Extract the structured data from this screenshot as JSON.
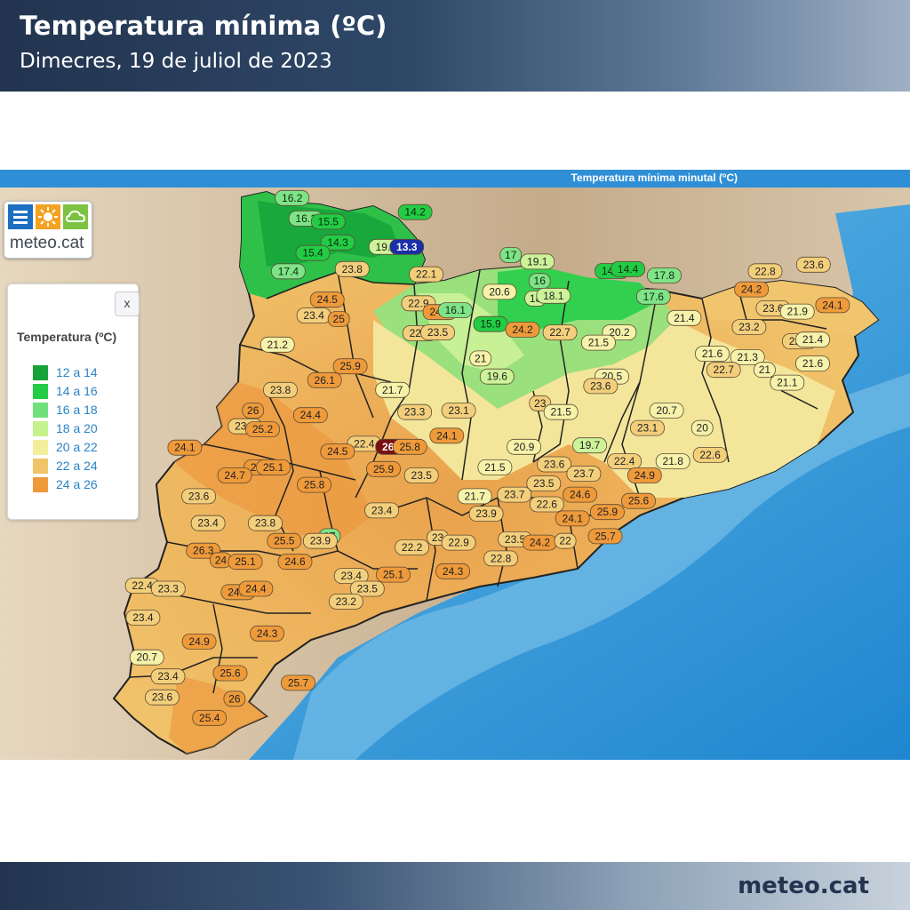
{
  "header": {
    "title": "Temperatura mínima (ºC)",
    "subtitle": "Dimecres, 19 de juliol de 2023"
  },
  "map": {
    "bar_title": "Temperatura mínima minutal (ºC)",
    "logo_text": "meteo.cat",
    "logo_icons": [
      "menu-icon",
      "sun-icon",
      "cloud-icon"
    ],
    "colors": {
      "sea": "#3a9ad6",
      "land_gray": "#c9b79e",
      "bar": "#2f8fd6"
    }
  },
  "legend": {
    "close_label": "x",
    "title": "Temperatura (ºC)",
    "items": [
      {
        "label": "12 a 14",
        "color": "#17a33a"
      },
      {
        "label": "14 a 16",
        "color": "#22cc44"
      },
      {
        "label": "16 a 18",
        "color": "#6fe07a"
      },
      {
        "label": "18 a 20",
        "color": "#c6f28e"
      },
      {
        "label": "20 a 22",
        "color": "#f2ee9c"
      },
      {
        "label": "22 a 24",
        "color": "#f0c468"
      },
      {
        "label": "24 a 26",
        "color": "#ef9a3a"
      }
    ]
  },
  "stations": [
    {
      "t": "16.2",
      "lon": 0.713,
      "lat": 42.859
    },
    {
      "t": "16.1",
      "lon": 0.77,
      "lat": 42.785
    },
    {
      "t": "15.5",
      "lon": 0.863,
      "lat": 42.774
    },
    {
      "t": "14.2",
      "lon": 1.225,
      "lat": 42.808
    },
    {
      "t": "14.3",
      "lon": 0.903,
      "lat": 42.699
    },
    {
      "t": "19.4",
      "lon": 1.103,
      "lat": 42.683
    },
    {
      "t": "13.3",
      "lon": 1.19,
      "lat": 42.683
    },
    {
      "t": "15.4",
      "lon": 0.799,
      "lat": 42.661
    },
    {
      "t": "17.4",
      "lon": 0.697,
      "lat": 42.595
    },
    {
      "t": "23.8",
      "lon": 0.963,
      "lat": 42.603
    },
    {
      "t": "22.1",
      "lon": 1.271,
      "lat": 42.584
    },
    {
      "t": "17",
      "lon": 1.623,
      "lat": 42.654
    },
    {
      "t": "19.1",
      "lon": 1.734,
      "lat": 42.63
    },
    {
      "t": "14.6",
      "lon": 2.044,
      "lat": 42.596
    },
    {
      "t": "14.4",
      "lon": 2.111,
      "lat": 42.603
    },
    {
      "t": "17.8",
      "lon": 2.262,
      "lat": 42.58
    },
    {
      "t": "16",
      "lon": 1.743,
      "lat": 42.56
    },
    {
      "t": "20.6",
      "lon": 1.576,
      "lat": 42.521
    },
    {
      "t": "18",
      "lon": 1.726,
      "lat": 42.497
    },
    {
      "t": "18.1",
      "lon": 1.801,
      "lat": 42.507
    },
    {
      "t": "17.6",
      "lon": 2.217,
      "lat": 42.504
    },
    {
      "t": "22.9",
      "lon": 1.239,
      "lat": 42.48
    },
    {
      "t": "24.9",
      "lon": 1.328,
      "lat": 42.448
    },
    {
      "t": "16.1",
      "lon": 1.392,
      "lat": 42.455
    },
    {
      "t": "24.5",
      "lon": 0.859,
      "lat": 42.493
    },
    {
      "t": "23.4",
      "lon": 0.803,
      "lat": 42.436
    },
    {
      "t": "25",
      "lon": 0.907,
      "lat": 42.423
    },
    {
      "t": "15.9",
      "lon": 1.539,
      "lat": 42.405
    },
    {
      "t": "24.2",
      "lon": 1.672,
      "lat": 42.385
    },
    {
      "t": "22.7",
      "lon": 1.244,
      "lat": 42.372
    },
    {
      "t": "23.5",
      "lon": 1.319,
      "lat": 42.375
    },
    {
      "t": "22.7",
      "lon": 1.828,
      "lat": 42.375
    },
    {
      "t": "20.2",
      "lon": 2.075,
      "lat": 42.375
    },
    {
      "t": "21.5",
      "lon": 1.988,
      "lat": 42.338
    },
    {
      "t": "21.4",
      "lon": 2.345,
      "lat": 42.427
    },
    {
      "t": "21.2",
      "lon": 0.652,
      "lat": 42.331
    },
    {
      "t": "21",
      "lon": 1.497,
      "lat": 42.281
    },
    {
      "t": "19.6",
      "lon": 1.566,
      "lat": 42.216
    },
    {
      "t": "20.5",
      "lon": 2.044,
      "lat": 42.216
    },
    {
      "t": "23.6",
      "lon": 1.997,
      "lat": 42.182
    },
    {
      "t": "25.9",
      "lon": 0.955,
      "lat": 42.253
    },
    {
      "t": "26.1",
      "lon": 0.848,
      "lat": 42.203
    },
    {
      "t": "23.8",
      "lon": 0.664,
      "lat": 42.168
    },
    {
      "t": "21.7",
      "lon": 1.131,
      "lat": 42.168
    },
    {
      "t": "23",
      "lon": 1.745,
      "lat": 42.12
    },
    {
      "t": "21.5",
      "lon": 1.832,
      "lat": 42.088
    },
    {
      "t": "20.7",
      "lon": 2.272,
      "lat": 42.094
    },
    {
      "t": "24.4",
      "lon": 0.789,
      "lat": 42.077
    },
    {
      "t": "23.3",
      "lon": 1.223,
      "lat": 42.088
    },
    {
      "t": "23.1",
      "lon": 1.406,
      "lat": 42.094
    },
    {
      "t": "26",
      "lon": 0.55,
      "lat": 42.094
    },
    {
      "t": "23.9",
      "lon": 0.517,
      "lat": 42.037
    },
    {
      "t": "25.2",
      "lon": 0.59,
      "lat": 42.026
    },
    {
      "t": "23.1",
      "lon": 2.192,
      "lat": 42.031
    },
    {
      "t": "20",
      "lon": 2.42,
      "lat": 42.031
    },
    {
      "t": "24.1",
      "lon": 1.357,
      "lat": 42.003
    },
    {
      "t": "22.4",
      "lon": 1.013,
      "lat": 41.974
    },
    {
      "t": "26.4",
      "lon": 1.131,
      "lat": 41.963
    },
    {
      "t": "25.8",
      "lon": 1.203,
      "lat": 41.963
    },
    {
      "t": "20.9",
      "lon": 1.678,
      "lat": 41.963
    },
    {
      "t": "19.7",
      "lon": 1.952,
      "lat": 41.968
    },
    {
      "t": "24.1",
      "lon": 0.266,
      "lat": 41.96
    },
    {
      "t": "24.5",
      "lon": 0.902,
      "lat": 41.946
    },
    {
      "t": "21.8",
      "lon": 2.298,
      "lat": 41.911
    },
    {
      "t": "22.6",
      "lon": 2.453,
      "lat": 41.934
    },
    {
      "t": "24.9",
      "lon": 0.583,
      "lat": 41.889
    },
    {
      "t": "25.1",
      "lon": 0.635,
      "lat": 41.889
    },
    {
      "t": "25.9",
      "lon": 1.093,
      "lat": 41.883
    },
    {
      "t": "21.5",
      "lon": 1.557,
      "lat": 41.889
    },
    {
      "t": "23.6",
      "lon": 1.804,
      "lat": 41.9
    },
    {
      "t": "22.4",
      "lon": 2.096,
      "lat": 41.911
    },
    {
      "t": "24.7",
      "lon": 0.474,
      "lat": 41.86
    },
    {
      "t": "23.5",
      "lon": 1.251,
      "lat": 41.86
    },
    {
      "t": "23.7",
      "lon": 1.927,
      "lat": 41.866
    },
    {
      "t": "24.9",
      "lon": 2.18,
      "lat": 41.86
    },
    {
      "t": "25.8",
      "lon": 0.805,
      "lat": 41.826
    },
    {
      "t": "23.5",
      "lon": 1.76,
      "lat": 41.831
    },
    {
      "t": "23.6",
      "lon": 0.324,
      "lat": 41.785
    },
    {
      "t": "21.7",
      "lon": 1.473,
      "lat": 41.785
    },
    {
      "t": "23.7",
      "lon": 1.638,
      "lat": 41.791
    },
    {
      "t": "24.6",
      "lon": 1.911,
      "lat": 41.791
    },
    {
      "t": "25.6",
      "lon": 2.155,
      "lat": 41.768
    },
    {
      "t": "22.6",
      "lon": 1.773,
      "lat": 41.756
    },
    {
      "t": "23.4",
      "lon": 1.086,
      "lat": 41.734
    },
    {
      "t": "23.9",
      "lon": 1.521,
      "lat": 41.722
    },
    {
      "t": "25.9",
      "lon": 2.025,
      "lat": 41.728
    },
    {
      "t": "24.1",
      "lon": 1.88,
      "lat": 41.705
    },
    {
      "t": "23.4",
      "lon": 0.363,
      "lat": 41.688
    },
    {
      "t": "23.8",
      "lon": 0.601,
      "lat": 41.688
    },
    {
      "t": "17",
      "lon": 0.869,
      "lat": 41.641
    },
    {
      "t": "23.9",
      "lon": 0.83,
      "lat": 41.624
    },
    {
      "t": "25.5",
      "lon": 0.68,
      "lat": 41.624
    },
    {
      "t": "23",
      "lon": 1.319,
      "lat": 41.636
    },
    {
      "t": "22.9",
      "lon": 1.406,
      "lat": 41.618
    },
    {
      "t": "23.5",
      "lon": 1.641,
      "lat": 41.63
    },
    {
      "t": "24.2",
      "lon": 1.744,
      "lat": 41.618
    },
    {
      "t": "22",
      "lon": 1.85,
      "lat": 41.624
    },
    {
      "t": "25.7",
      "lon": 2.016,
      "lat": 41.641
    },
    {
      "t": "22.2",
      "lon": 1.212,
      "lat": 41.601
    },
    {
      "t": "26.3",
      "lon": 0.343,
      "lat": 41.589
    },
    {
      "t": "24",
      "lon": 0.416,
      "lat": 41.555
    },
    {
      "t": "25.1",
      "lon": 0.518,
      "lat": 41.549
    },
    {
      "t": "24.6",
      "lon": 0.725,
      "lat": 41.549
    },
    {
      "t": "22.8",
      "lon": 1.582,
      "lat": 41.561
    },
    {
      "t": "24.3",
      "lon": 1.382,
      "lat": 41.515
    },
    {
      "t": "25.1",
      "lon": 1.134,
      "lat": 41.503
    },
    {
      "t": "23.4",
      "lon": 0.959,
      "lat": 41.498
    },
    {
      "t": "22.4",
      "lon": 0.089,
      "lat": 41.463
    },
    {
      "t": "23.3",
      "lon": 0.197,
      "lat": 41.452
    },
    {
      "t": "24.5",
      "lon": 0.488,
      "lat": 41.44
    },
    {
      "t": "24.4",
      "lon": 0.562,
      "lat": 41.452
    },
    {
      "t": "23.5",
      "lon": 1.026,
      "lat": 41.452
    },
    {
      "t": "23.2",
      "lon": 0.937,
      "lat": 41.406
    },
    {
      "t": "23.4",
      "lon": 0.092,
      "lat": 41.348
    },
    {
      "t": "24.3",
      "lon": 0.609,
      "lat": 41.291
    },
    {
      "t": "24.9",
      "lon": 0.326,
      "lat": 41.262
    },
    {
      "t": "20.7",
      "lon": 0.108,
      "lat": 41.205
    },
    {
      "t": "23.4",
      "lon": 0.196,
      "lat": 41.136
    },
    {
      "t": "25.6",
      "lon": 0.455,
      "lat": 41.148
    },
    {
      "t": "25.7",
      "lon": 0.738,
      "lat": 41.113
    },
    {
      "t": "23.6",
      "lon": 0.172,
      "lat": 41.061
    },
    {
      "t": "26",
      "lon": 0.473,
      "lat": 41.056
    },
    {
      "t": "25.4",
      "lon": 0.369,
      "lat": 40.987
    },
    {
      "t": "22.8",
      "lon": 2.682,
      "lat": 42.595
    },
    {
      "t": "23.6",
      "lon": 2.883,
      "lat": 42.619
    },
    {
      "t": "24.2",
      "lon": 2.625,
      "lat": 42.53
    },
    {
      "t": "24.1",
      "lon": 2.963,
      "lat": 42.473
    },
    {
      "t": "23.6",
      "lon": 2.715,
      "lat": 42.462
    },
    {
      "t": "21.9",
      "lon": 2.816,
      "lat": 42.45
    },
    {
      "t": "23.2",
      "lon": 2.615,
      "lat": 42.394
    },
    {
      "t": "22.1",
      "lon": 2.824,
      "lat": 42.343
    },
    {
      "t": "21.4",
      "lon": 2.88,
      "lat": 42.349
    },
    {
      "t": "21.6",
      "lon": 2.462,
      "lat": 42.298
    },
    {
      "t": "21.3",
      "lon": 2.609,
      "lat": 42.286
    },
    {
      "t": "21.6",
      "lon": 2.88,
      "lat": 42.263
    },
    {
      "t": "22.7",
      "lon": 2.509,
      "lat": 42.24
    },
    {
      "t": "21",
      "lon": 2.68,
      "lat": 42.24
    },
    {
      "t": "21.1",
      "lon": 2.774,
      "lat": 42.194
    }
  ],
  "footer": {
    "brand": "meteo.cat"
  }
}
